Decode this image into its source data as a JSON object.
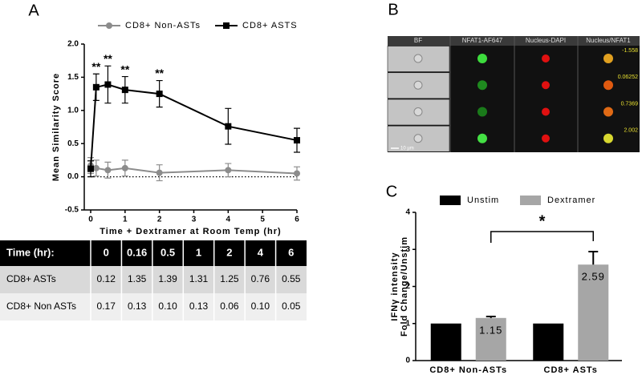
{
  "panel_labels": [
    "A",
    "B",
    "C"
  ],
  "chart_data": [
    {
      "type": "line",
      "xlabel": "Time + Dextramer at Room Temp (hr)",
      "ylabel": "Mean Similarity Score",
      "x": [
        0,
        0.16,
        0.5,
        1,
        2,
        4,
        6
      ],
      "series": [
        {
          "name": "CD8+ Non-ASTs",
          "color": "#8c8c8c",
          "marker": "circle",
          "values": [
            0.17,
            0.13,
            0.1,
            0.13,
            0.06,
            0.1,
            0.05
          ],
          "errors": [
            0.12,
            0.12,
            0.12,
            0.12,
            0.12,
            0.1,
            0.1
          ]
        },
        {
          "name": "CD8+ ASTS",
          "color": "#000000",
          "marker": "square",
          "values": [
            0.12,
            1.35,
            1.39,
            1.31,
            1.25,
            0.76,
            0.55
          ],
          "errors": [
            0.12,
            0.2,
            0.28,
            0.2,
            0.2,
            0.27,
            0.18
          ]
        }
      ],
      "annotations": [
        {
          "text": "**",
          "x": 0.16
        },
        {
          "text": "**",
          "x": 0.5
        },
        {
          "text": "**",
          "x": 1
        },
        {
          "text": "**",
          "x": 2
        }
      ],
      "reference_line": 0,
      "xlim": [
        0,
        6
      ],
      "xticks": [
        0,
        1,
        2,
        3,
        4,
        5,
        6
      ],
      "ylim": [
        -0.5,
        2.0
      ],
      "yticks": [
        -0.5,
        {
          "value": 0,
          "label": "0.0"
        },
        0.5,
        {
          "value": 1,
          "label": "1.0"
        },
        1.5,
        {
          "value": 2,
          "label": "2.0"
        }
      ],
      "legend": "top"
    },
    {
      "type": "bar",
      "ylabel": [
        "IFNγ intensity",
        "Fold Change/Unstim"
      ],
      "categories": [
        "CD8+ Non-ASTs",
        "CD8+ ASTs"
      ],
      "series": [
        {
          "name": "Unstim",
          "color": "#000000",
          "values": [
            1,
            1
          ]
        },
        {
          "name": "Dextramer",
          "color": "#a6a6a6",
          "values": [
            1.15,
            2.59
          ],
          "errors": [
            0.04,
            0.35
          ],
          "show_values": true
        }
      ],
      "annotations": [
        "*"
      ],
      "ylim": [
        0,
        4
      ],
      "yticks": [
        0,
        1,
        2,
        3,
        4
      ],
      "legend": "top"
    }
  ],
  "image_panel": {
    "columns": [
      "BF",
      "NFAT1-AF647",
      "Nucleus-DAPI",
      "Nucleus/NFAT1"
    ],
    "scores": [
      "-1.558",
      "0.06252",
      "0.7369",
      "2.002"
    ],
    "scale_bar": "10 µm"
  },
  "table": {
    "header": [
      "Time (hr):",
      "0",
      "0.16",
      "0.5",
      "1",
      "2",
      "4",
      "6"
    ],
    "rows": [
      [
        "CD8+ ASTs",
        "0.12",
        "1.35",
        "1.39",
        "1.31",
        "1.25",
        "0.76",
        "0.55"
      ],
      [
        "CD8+ Non ASTs",
        "0.17",
        "0.13",
        "0.10",
        "0.13",
        "0.06",
        "0.10",
        "0.05"
      ]
    ]
  }
}
